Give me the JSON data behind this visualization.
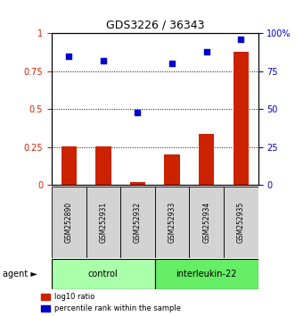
{
  "title": "GDS3226 / 36343",
  "samples": [
    "GSM252890",
    "GSM252931",
    "GSM252932",
    "GSM252933",
    "GSM252934",
    "GSM252935"
  ],
  "bar_values": [
    0.255,
    0.255,
    0.02,
    0.2,
    0.335,
    0.88
  ],
  "scatter_values": [
    0.85,
    0.82,
    0.48,
    0.8,
    0.88,
    0.96
  ],
  "groups": [
    {
      "label": "control",
      "indices": [
        0,
        1,
        2
      ],
      "color": "#aaffaa"
    },
    {
      "label": "interleukin-22",
      "indices": [
        3,
        4,
        5
      ],
      "color": "#66ee66"
    }
  ],
  "bar_color": "#cc2200",
  "scatter_color": "#0000cc",
  "ylim_left": [
    0,
    1.0
  ],
  "ylim_right": [
    0,
    100
  ],
  "yticks_left": [
    0,
    0.25,
    0.5,
    0.75,
    1.0
  ],
  "ytick_labels_left": [
    "0",
    "0.25",
    "0.5",
    "0.75",
    "1"
  ],
  "yticks_right": [
    0,
    25,
    50,
    75,
    100
  ],
  "ytick_labels_right": [
    "0",
    "25",
    "50",
    "75",
    "100%"
  ],
  "hlines": [
    0.25,
    0.5,
    0.75
  ],
  "legend_items": [
    {
      "label": "log10 ratio",
      "color": "#cc2200"
    },
    {
      "label": "percentile rank within the sample",
      "color": "#0000cc"
    }
  ],
  "agent_label": "agent ►",
  "sample_bg_color": "#d3d3d3",
  "background_color": "#ffffff"
}
